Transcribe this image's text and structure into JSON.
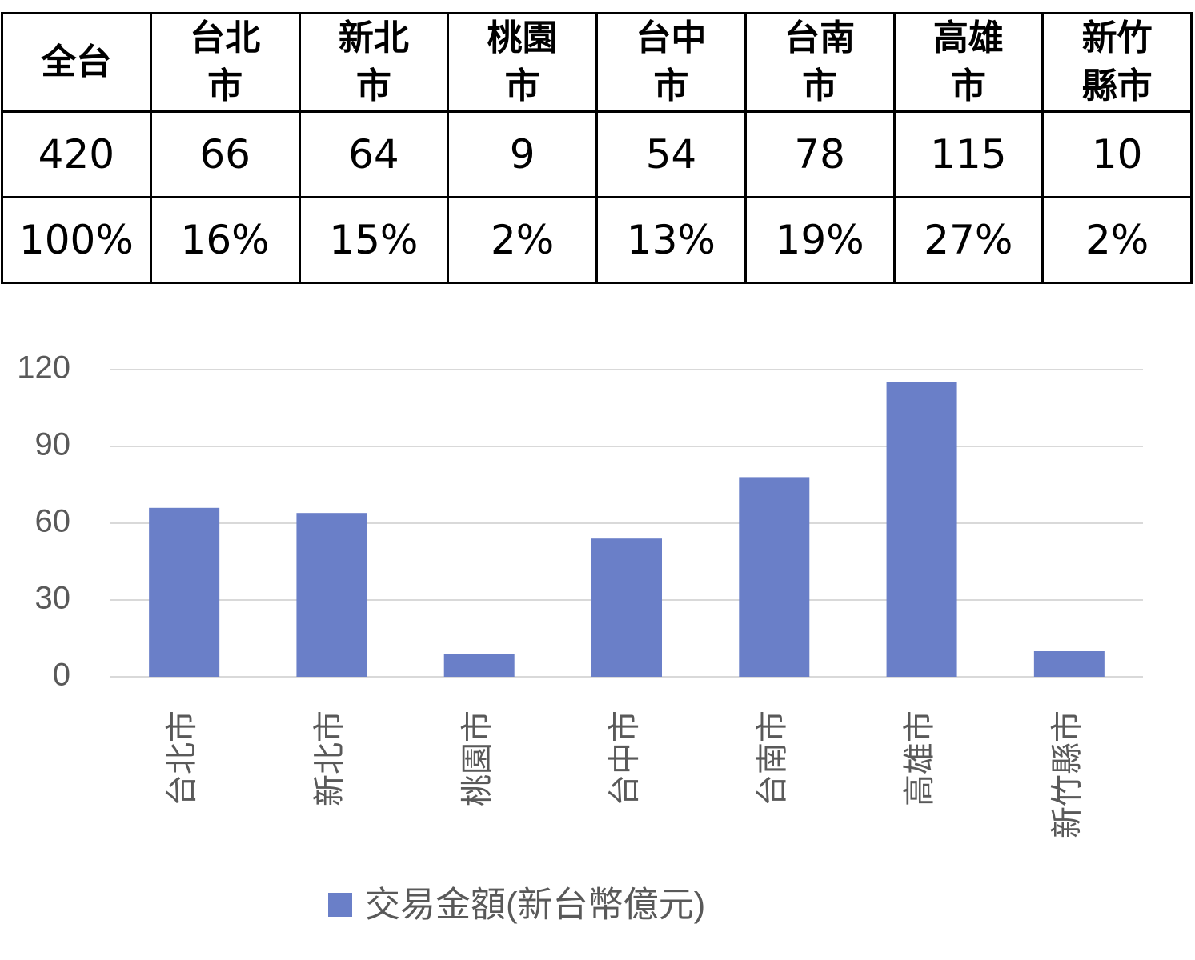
{
  "table": {
    "header": [
      "全台",
      "台北市",
      "新北市",
      "桃園市",
      "台中市",
      "台南市",
      "高雄市",
      "新竹縣市"
    ],
    "rows": [
      [
        "420",
        "66",
        "64",
        "9",
        "54",
        "78",
        "115",
        "10"
      ],
      [
        "100%",
        "16%",
        "15%",
        "2%",
        "13%",
        "19%",
        "27%",
        "2%"
      ]
    ]
  },
  "chart_data": {
    "type": "bar",
    "categories": [
      "台北市",
      "新北市",
      "桃園市",
      "台中市",
      "台南市",
      "高雄市",
      "新竹縣市"
    ],
    "series": [
      {
        "name": "交易金額(新台幣億元)",
        "color": "#6a7fc8",
        "values": [
          66,
          64,
          9,
          54,
          78,
          115,
          10
        ]
      }
    ],
    "ylim": [
      0,
      120
    ],
    "yticks": [
      0,
      30,
      60,
      90,
      120
    ],
    "grid": true,
    "legend": "bottom"
  }
}
